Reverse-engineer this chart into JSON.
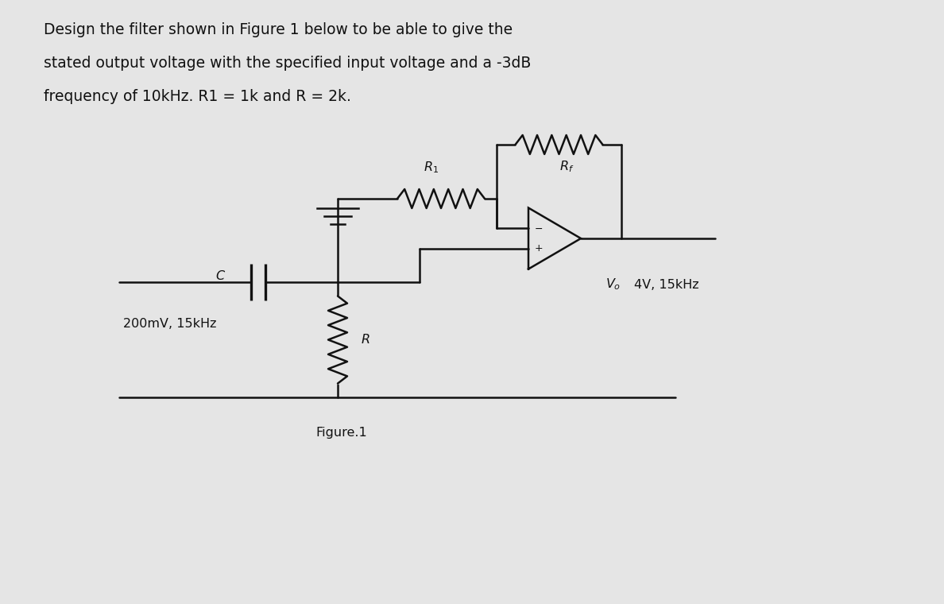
{
  "title_line1": "Design the filter shown in Figure 1 below to be able to give the",
  "title_line2": "stated output voltage with the specified input voltage and a -3dB",
  "title_line3": "frequency of 10kHz. R1 = 1k and R = 2k.",
  "figure_label": "Figure.1",
  "label_C": "C",
  "label_R1": "R₁",
  "label_Rf": "Rf",
  "label_R": "R",
  "label_Vo": "Vₒ",
  "label_input": "200mV, 15kHz",
  "label_output": "4V, 15kHz",
  "bg_color": "#e5e5e5",
  "line_color": "#111111",
  "text_color": "#111111",
  "fig_width": 11.88,
  "fig_height": 7.6
}
